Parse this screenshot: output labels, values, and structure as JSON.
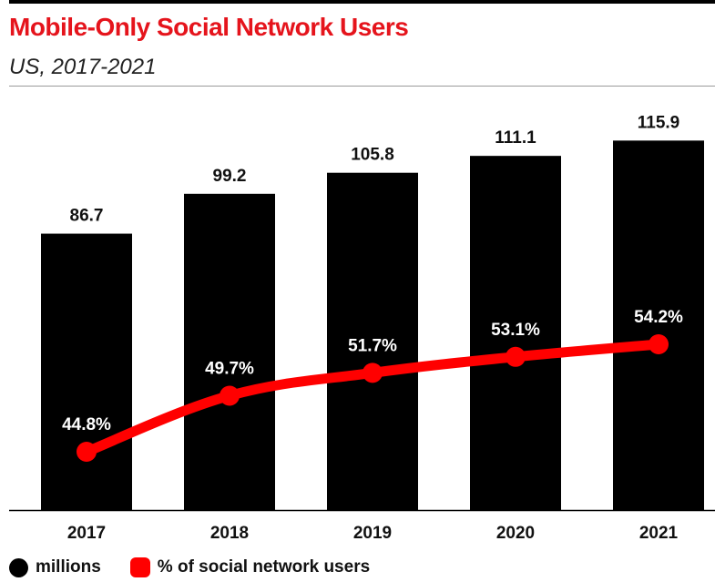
{
  "title": "Mobile-Only Social Network Users",
  "subtitle": "US, 2017-2021",
  "colors": {
    "title": "#e5141c",
    "bars": "#000000",
    "line": "#ff0000"
  },
  "legend": {
    "bars_label": "millions",
    "line_label": "% of social network users"
  },
  "chart_data": {
    "type": "bar",
    "title": "Mobile-Only Social Network Users",
    "subtitle": "US, 2017-2021",
    "categories": [
      "2017",
      "2018",
      "2019",
      "2020",
      "2021"
    ],
    "series": [
      {
        "name": "millions",
        "type": "bar",
        "values": [
          86.7,
          99.2,
          105.8,
          111.1,
          115.9
        ],
        "labels": [
          "86.7",
          "99.2",
          "105.8",
          "111.1",
          "115.9"
        ]
      },
      {
        "name": "% of social network users",
        "type": "line",
        "values": [
          44.8,
          49.7,
          51.7,
          53.1,
          54.2
        ],
        "labels": [
          "44.8%",
          "49.7%",
          "51.7%",
          "53.1%",
          "54.2%"
        ]
      }
    ],
    "xlabel": "",
    "ylabel": "",
    "bar_ylim": [
      0,
      120
    ],
    "line_ylim": [
      33.35,
      58.15
    ],
    "grid": false,
    "legend": "bottom-left"
  }
}
